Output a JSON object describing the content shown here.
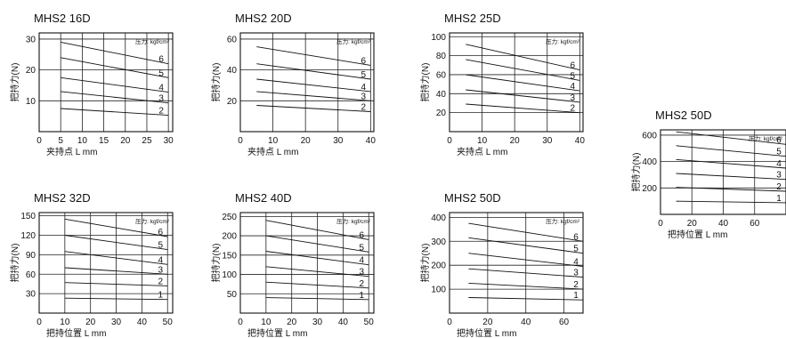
{
  "chart_data": [
    {
      "type": "line",
      "title": "MHS2 16D",
      "xlabel": "夹持点 L mm",
      "ylabel": "把持力(N)",
      "legend_title": "压力: kgf/cm²",
      "x_ticks": [
        0,
        5,
        10,
        15,
        20,
        25,
        30
      ],
      "y_ticks": [
        10,
        20,
        30
      ],
      "xlim": [
        0,
        31
      ],
      "ylim": [
        0,
        32
      ],
      "series": [
        {
          "name": "6",
          "x": [
            5,
            30
          ],
          "y": [
            29,
            22
          ]
        },
        {
          "name": "5",
          "x": [
            5,
            30
          ],
          "y": [
            24,
            17.5
          ]
        },
        {
          "name": "4",
          "x": [
            5,
            30
          ],
          "y": [
            17.5,
            12.8
          ]
        },
        {
          "name": "3",
          "x": [
            5,
            30
          ],
          "y": [
            13,
            9.3
          ]
        },
        {
          "name": "2",
          "x": [
            5,
            30
          ],
          "y": [
            7.5,
            5.3
          ]
        }
      ]
    },
    {
      "type": "line",
      "title": "MHS2 20D",
      "xlabel": "夹持点 L mm",
      "ylabel": "把持力(N)",
      "legend_title": "压力: kgf/cm²",
      "x_ticks": [
        0,
        10,
        20,
        30,
        40
      ],
      "y_ticks": [
        20,
        40,
        60
      ],
      "xlim": [
        0,
        41
      ],
      "ylim": [
        0,
        64
      ],
      "series": [
        {
          "name": "6",
          "x": [
            5,
            40
          ],
          "y": [
            55,
            43
          ]
        },
        {
          "name": "5",
          "x": [
            5,
            40
          ],
          "y": [
            44,
            34
          ]
        },
        {
          "name": "4",
          "x": [
            5,
            40
          ],
          "y": [
            34,
            26
          ]
        },
        {
          "name": "3",
          "x": [
            5,
            40
          ],
          "y": [
            26,
            20
          ]
        },
        {
          "name": "2",
          "x": [
            5,
            40
          ],
          "y": [
            17,
            13
          ]
        }
      ]
    },
    {
      "type": "line",
      "title": "MHS2 25D",
      "xlabel": "夹持点 L mm",
      "ylabel": "把持力(N)",
      "legend_title": "压力: kgf/cm²",
      "x_ticks": [
        0,
        10,
        20,
        30,
        40
      ],
      "y_ticks": [
        20,
        40,
        60,
        80,
        100
      ],
      "xlim": [
        0,
        41
      ],
      "ylim": [
        0,
        104
      ],
      "series": [
        {
          "name": "6",
          "x": [
            5,
            40
          ],
          "y": [
            92,
            65
          ]
        },
        {
          "name": "5",
          "x": [
            5,
            40
          ],
          "y": [
            76,
            54
          ]
        },
        {
          "name": "4",
          "x": [
            5,
            40
          ],
          "y": [
            60,
            43
          ]
        },
        {
          "name": "3",
          "x": [
            5,
            40
          ],
          "y": [
            44,
            31
          ]
        },
        {
          "name": "2",
          "x": [
            5,
            40
          ],
          "y": [
            29,
            20
          ]
        }
      ]
    },
    {
      "type": "line",
      "title": "MHS2 50D",
      "xlabel": "把持位置 L mm",
      "ylabel": "把持力(N)",
      "legend_title": "压力: kgf/cm²",
      "x_ticks": [
        0,
        20,
        40,
        60
      ],
      "y_ticks": [
        200,
        400,
        600
      ],
      "xlim": [
        0,
        80
      ],
      "ylim": [
        0,
        640
      ],
      "series": [
        {
          "name": "6",
          "x": [
            10,
            80
          ],
          "y": [
            625,
            530
          ]
        },
        {
          "name": "5",
          "x": [
            10,
            80
          ],
          "y": [
            520,
            440
          ]
        },
        {
          "name": "4",
          "x": [
            10,
            80
          ],
          "y": [
            415,
            350
          ]
        },
        {
          "name": "3",
          "x": [
            10,
            80
          ],
          "y": [
            310,
            265
          ]
        },
        {
          "name": "2",
          "x": [
            10,
            80
          ],
          "y": [
            205,
            175
          ]
        },
        {
          "name": "1",
          "x": [
            10,
            80
          ],
          "y": [
            100,
            88
          ]
        }
      ]
    },
    {
      "type": "line",
      "title": "MHS2 32D",
      "xlabel": "把持位置 L mm",
      "ylabel": "把持力(N)",
      "legend_title": "压力: kgf/cm²",
      "x_ticks": [
        0,
        10,
        20,
        30,
        40,
        50
      ],
      "y_ticks": [
        30,
        60,
        90,
        120,
        150
      ],
      "xlim": [
        0,
        52
      ],
      "ylim": [
        0,
        155
      ],
      "series": [
        {
          "name": "6",
          "x": [
            10,
            50
          ],
          "y": [
            145,
            118
          ]
        },
        {
          "name": "5",
          "x": [
            10,
            50
          ],
          "y": [
            120,
            98
          ]
        },
        {
          "name": "4",
          "x": [
            10,
            50
          ],
          "y": [
            95,
            75
          ]
        },
        {
          "name": "3",
          "x": [
            10,
            50
          ],
          "y": [
            70,
            60
          ]
        },
        {
          "name": "2",
          "x": [
            10,
            50
          ],
          "y": [
            47,
            42
          ]
        },
        {
          "name": "1",
          "x": [
            10,
            50
          ],
          "y": [
            23,
            21
          ]
        }
      ]
    },
    {
      "type": "line",
      "title": "MHS2 40D",
      "xlabel": "把持位置 L mm",
      "ylabel": "把持力(N)",
      "legend_title": "压力: kgf/cm²",
      "x_ticks": [
        0,
        10,
        20,
        30,
        40,
        50
      ],
      "y_ticks": [
        50,
        100,
        150,
        200,
        250
      ],
      "xlim": [
        0,
        52
      ],
      "ylim": [
        0,
        260
      ],
      "series": [
        {
          "name": "6",
          "x": [
            10,
            50
          ],
          "y": [
            240,
            190
          ]
        },
        {
          "name": "5",
          "x": [
            10,
            50
          ],
          "y": [
            200,
            158
          ]
        },
        {
          "name": "4",
          "x": [
            10,
            50
          ],
          "y": [
            160,
            125
          ]
        },
        {
          "name": "3",
          "x": [
            10,
            50
          ],
          "y": [
            120,
            95
          ]
        },
        {
          "name": "2",
          "x": [
            10,
            50
          ],
          "y": [
            80,
            65
          ]
        },
        {
          "name": "1",
          "x": [
            10,
            50
          ],
          "y": [
            40,
            35
          ]
        }
      ]
    },
    {
      "type": "line",
      "title": "MHS2 50D",
      "xlabel": "把持位置 L mm",
      "ylabel": "把持力(N)",
      "legend_title": "压力: kgf/cm²",
      "x_ticks": [
        0,
        20,
        40,
        60
      ],
      "y_ticks": [
        100,
        200,
        300,
        400
      ],
      "xlim": [
        0,
        70
      ],
      "ylim": [
        0,
        420
      ],
      "series": [
        {
          "name": "6",
          "x": [
            10,
            70
          ],
          "y": [
            375,
            300
          ]
        },
        {
          "name": "5",
          "x": [
            10,
            70
          ],
          "y": [
            315,
            250
          ]
        },
        {
          "name": "4",
          "x": [
            10,
            70
          ],
          "y": [
            250,
            195
          ]
        },
        {
          "name": "3",
          "x": [
            10,
            70
          ],
          "y": [
            185,
            150
          ]
        },
        {
          "name": "2",
          "x": [
            10,
            70
          ],
          "y": [
            125,
            100
          ]
        },
        {
          "name": "1",
          "x": [
            10,
            70
          ],
          "y": [
            65,
            55
          ]
        }
      ]
    }
  ]
}
